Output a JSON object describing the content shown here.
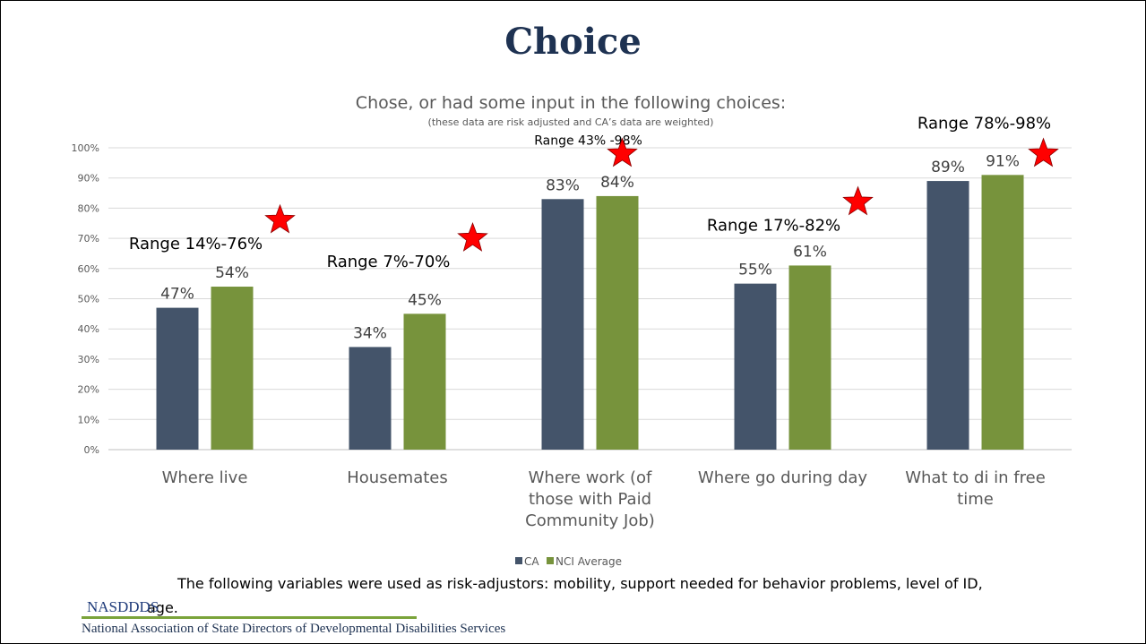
{
  "slide": {
    "title": "Choice",
    "caption_line1": "The following variables were used as risk-adjustors:  mobility, support needed for behavior problems, level of ID,",
    "caption_line2": "age.",
    "org_short": "NASDDDS",
    "org_full": "National Association of State Directors of Developmental Disabilities Services"
  },
  "chart_data": {
    "type": "bar",
    "title": "Chose, or had some input in the following choices:",
    "subtitle": "(these data are risk adjusted and CA’s data are weighted)",
    "categories": [
      [
        "Where live"
      ],
      [
        "Housemates"
      ],
      [
        "Where work (of",
        "those with Paid",
        "Community Job)"
      ],
      [
        "Where go during day"
      ],
      [
        "What to di in free",
        "time"
      ]
    ],
    "series": [
      {
        "name": "CA",
        "values": [
          47,
          34,
          83,
          55,
          89
        ],
        "labels": [
          "47%",
          "34%",
          "83%",
          "55%",
          "89%"
        ]
      },
      {
        "name": "NCI Average",
        "values": [
          54,
          45,
          84,
          61,
          91
        ],
        "labels": [
          "54%",
          "45%",
          "84%",
          "61%",
          "91%"
        ]
      }
    ],
    "ylim": [
      0,
      100
    ],
    "yticks": [
      "0%",
      "10%",
      "20%",
      "30%",
      "40%",
      "50%",
      "60%",
      "70%",
      "80%",
      "90%",
      "100%"
    ],
    "grid": true,
    "legend": "bottom",
    "colors": {
      "CA": "#44546a",
      "NCI Average": "#77933c",
      "star": "#ff0000",
      "grid": "#d9d9d9"
    },
    "annotations": [
      {
        "text": "Range 14%-76%",
        "max": 76
      },
      {
        "text": "Range 7%-70%",
        "max": 70
      },
      {
        "text": "Range 43% -98%",
        "max": 98
      },
      {
        "text": "Range 17%-82%",
        "max": 82
      },
      {
        "text": "Range 78%-98%",
        "max": 98
      }
    ]
  }
}
